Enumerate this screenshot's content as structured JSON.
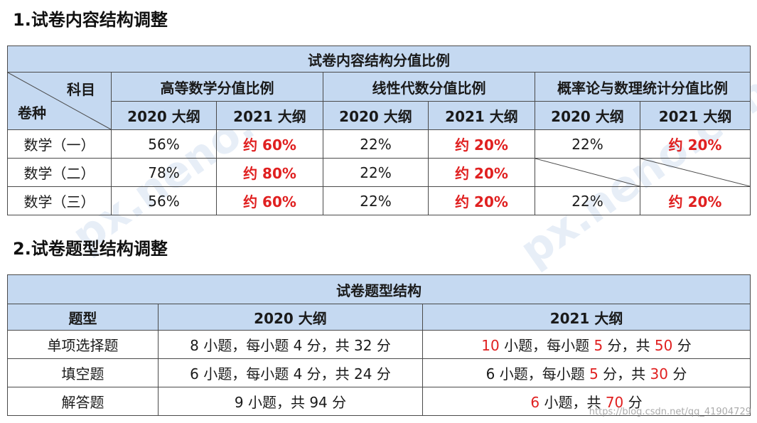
{
  "section1": {
    "heading": "1.试卷内容结构调整"
  },
  "table1": {
    "title": "试卷内容结构分值比例",
    "corner_top": "科目",
    "corner_bottom": "卷种",
    "groups": [
      "高等数学分值比例",
      "线性代数分值比例",
      "概率论与数理统计分值比例"
    ],
    "sub": [
      "2020 大纲",
      "2021 大纲"
    ],
    "rows": [
      {
        "name": "数学（一）",
        "cells": [
          "56%",
          "约 60%",
          "22%",
          "约 20%",
          "22%",
          "约 20%"
        ]
      },
      {
        "name": "数学（二）",
        "cells": [
          "78%",
          "约 80%",
          "22%",
          "约 20%",
          "",
          ""
        ]
      },
      {
        "name": "数学（三）",
        "cells": [
          "56%",
          "约 60%",
          "22%",
          "约 20%",
          "22%",
          "约 20%"
        ]
      }
    ]
  },
  "section2": {
    "heading": "2.试卷题型结构调整"
  },
  "table2": {
    "title": "试卷题型结构",
    "headers": [
      "题型",
      "2020 大纲",
      "2021 大纲"
    ],
    "rows": [
      {
        "type": "单项选择题",
        "y2020": "8 小题，每小题 4 分，共 32 分",
        "y2021": {
          "a": "10",
          "b": " 小题，每小题 ",
          "c": "5",
          "d": " 分，共 ",
          "e": "50",
          "f": " 分"
        }
      },
      {
        "type": "填空题",
        "y2020": "6 小题，每小题 4 分，共 24 分",
        "y2021": {
          "a": "",
          "b": "6 小题，每小题 ",
          "c": "5",
          "d": " 分，共 ",
          "e": "30",
          "f": " 分"
        }
      },
      {
        "type": "解答题",
        "y2020": "9 小题，共 94 分",
        "y2021": {
          "a": "6",
          "b": " 小题，共 ",
          "c": "70",
          "d": " 分",
          "e": "",
          "f": ""
        }
      }
    ]
  },
  "watermarks": {
    "site": "px.neno.com",
    "csdn": "https://blog.csdn.net/qq_41904729"
  },
  "colors": {
    "header_bg": "#c5d9f1",
    "highlight": "#e02020",
    "border": "#4a4a4a"
  }
}
